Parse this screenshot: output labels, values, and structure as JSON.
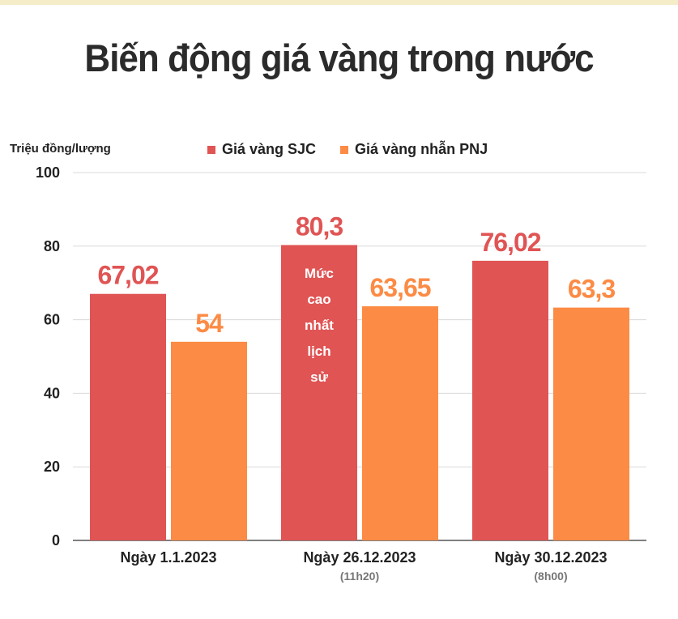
{
  "title": "Biến động giá vàng trong nước",
  "unit_label": "Triệu đồng/lượng",
  "colors": {
    "sjc": "#e05454",
    "pnj": "#fc8b45",
    "grid": "#d9d9d9",
    "axis": "#555555"
  },
  "chart_data": {
    "type": "bar",
    "ylabel": "Triệu đồng/lượng",
    "xlabel": "",
    "ylim": [
      0,
      100
    ],
    "yticks": [
      "0",
      "20",
      "40",
      "60",
      "80",
      "100"
    ],
    "legend_position": "top",
    "grid": true,
    "categories": [
      "Ngày 1.1.2023",
      "Ngày 26.12.2023",
      "Ngày 30.12.2023"
    ],
    "category_sublabels": [
      "",
      "(11h20)",
      "(8h00)"
    ],
    "series": [
      {
        "name": "Giá vàng SJC",
        "values": [
          67.02,
          80.3,
          76.02
        ],
        "labels": [
          "67,02",
          "80,3",
          "76,02"
        ]
      },
      {
        "name": "Giá vàng nhẫn PNJ",
        "values": [
          54,
          63.65,
          63.3
        ],
        "labels": [
          "54",
          "63,65",
          "63,3"
        ]
      }
    ],
    "annotations": [
      {
        "category_index": 1,
        "series_index": 0,
        "lines": [
          "Mức",
          "cao",
          "nhất",
          "lịch",
          "sử"
        ]
      }
    ]
  }
}
